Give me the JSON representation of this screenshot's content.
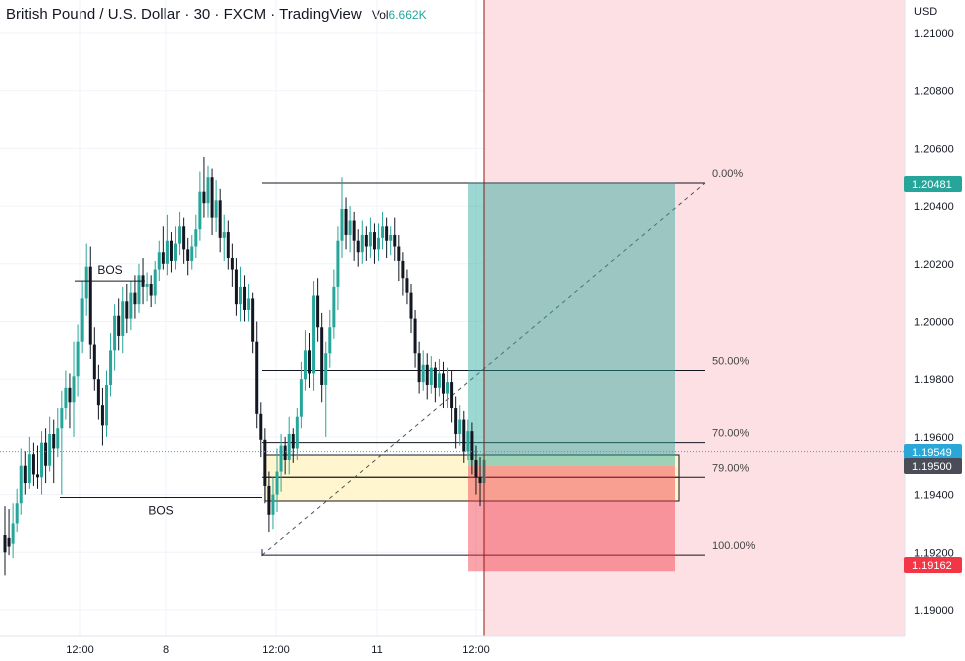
{
  "header": {
    "title": "British Pound / U.S. Dollar · 30 · FXCM · TradingView",
    "vol_label": "Vol",
    "vol_value": "6.662K"
  },
  "colors": {
    "up": "#26a69a",
    "down": "#131722",
    "target_zone": "#26a69a",
    "stop_zone": "#f23645",
    "zone_bg": "#fde0e3",
    "fvg": "#fff6cf",
    "grid": "#f0f3fa"
  },
  "chart_data": {
    "type": "candlestick",
    "title": "British Pound / U.S. Dollar · 30 · FXCM · TradingView",
    "currency": "USD",
    "yticks": [
      "1.21000",
      "1.20800",
      "1.20600",
      "1.20400",
      "1.20200",
      "1.20000",
      "1.19800",
      "1.19600",
      "1.19400",
      "1.19200",
      "1.19000"
    ],
    "xticks": [
      "12:00",
      "8",
      "12:00",
      "11",
      "12:00"
    ],
    "ylim": [
      1.1887,
      1.2117
    ],
    "price_labels": [
      {
        "value": "1.20481",
        "color": "#26a69a"
      },
      {
        "value": "1.19549",
        "color": "#2aa7d6"
      },
      {
        "value": "1.19500",
        "color": "#4a4d57"
      },
      {
        "value": "1.19162",
        "color": "#f23645"
      }
    ],
    "fib_levels": [
      {
        "label": "0.00%",
        "price": 1.2048
      },
      {
        "label": "50.00%",
        "price": 1.1983
      },
      {
        "label": "70.00%",
        "price": 1.1958
      },
      {
        "label": "79.00%",
        "price": 1.1946
      },
      {
        "label": "100.00%",
        "price": 1.1919
      }
    ],
    "annotations": [
      "BOS",
      "BOS"
    ],
    "position": {
      "entry": 1.195,
      "target": 1.20481,
      "stop": 1.19162
    },
    "candles": [
      [
        1.1926,
        1.192,
        1.1936,
        1.1912
      ],
      [
        1.1925,
        1.1922,
        1.1935,
        1.1919
      ],
      [
        1.1923,
        1.193,
        1.1937,
        1.1918
      ],
      [
        1.193,
        1.1937,
        1.1942,
        1.1927
      ],
      [
        1.1937,
        1.195,
        1.1956,
        1.1933
      ],
      [
        1.195,
        1.1944,
        1.1955,
        1.194
      ],
      [
        1.1944,
        1.1954,
        1.196,
        1.1942
      ],
      [
        1.1954,
        1.1947,
        1.1958,
        1.1943
      ],
      [
        1.1947,
        1.1946,
        1.1957,
        1.1942
      ],
      [
        1.1946,
        1.1958,
        1.1962,
        1.194
      ],
      [
        1.1958,
        1.195,
        1.1963,
        1.1944
      ],
      [
        1.195,
        1.1961,
        1.1967,
        1.1948
      ],
      [
        1.1961,
        1.1956,
        1.1966,
        1.1944
      ],
      [
        1.1956,
        1.1963,
        1.197,
        1.1953
      ],
      [
        1.1963,
        1.197,
        1.1976,
        1.194
      ],
      [
        1.197,
        1.1977,
        1.1983,
        1.1966
      ],
      [
        1.1977,
        1.1972,
        1.1982,
        1.1963
      ],
      [
        1.1972,
        1.1981,
        1.1993,
        1.196
      ],
      [
        1.1981,
        1.1993,
        1.1999,
        1.1974
      ],
      [
        1.1993,
        1.2008,
        1.2014,
        1.1989
      ],
      [
        1.2008,
        1.2019,
        1.2027,
        1.2002
      ],
      [
        1.2019,
        1.1992,
        1.2026,
        1.1987
      ],
      [
        1.1992,
        1.198,
        1.1998,
        1.1976
      ],
      [
        1.198,
        1.1971,
        1.1985,
        1.1966
      ],
      [
        1.1971,
        1.1964,
        1.1977,
        1.1957
      ],
      [
        1.1964,
        1.1978,
        1.1983,
        1.196
      ],
      [
        1.1978,
        1.199,
        1.1996,
        1.1974
      ],
      [
        1.199,
        1.2002,
        1.2006,
        1.1983
      ],
      [
        1.2002,
        1.1995,
        1.2008,
        1.199
      ],
      [
        1.1995,
        1.2007,
        1.2012,
        1.1989
      ],
      [
        1.2007,
        1.2001,
        1.2013,
        1.1996
      ],
      [
        1.2001,
        1.201,
        1.2014,
        1.1997
      ],
      [
        1.201,
        1.2006,
        1.2016,
        1.2001
      ],
      [
        1.2006,
        1.2016,
        1.202,
        1.2003
      ],
      [
        1.2016,
        1.2012,
        1.2022,
        1.2006
      ],
      [
        1.2012,
        1.2013,
        1.2017,
        1.2007
      ],
      [
        1.2013,
        1.2009,
        1.2016,
        1.2005
      ],
      [
        1.2009,
        1.2018,
        1.2021,
        1.2006
      ],
      [
        1.2018,
        1.2024,
        1.2028,
        1.2014
      ],
      [
        1.2024,
        1.202,
        1.2033,
        1.2018
      ],
      [
        1.202,
        1.2028,
        1.2037,
        1.2016
      ],
      [
        1.2028,
        1.2021,
        1.2031,
        1.2017
      ],
      [
        1.2021,
        1.2027,
        1.2033,
        1.2018
      ],
      [
        1.2027,
        1.2033,
        1.2038,
        1.2023
      ],
      [
        1.2033,
        1.2025,
        1.2036,
        1.202
      ],
      [
        1.2025,
        1.2021,
        1.2029,
        1.2016
      ],
      [
        1.2021,
        1.2026,
        1.203,
        1.2018
      ],
      [
        1.2026,
        1.2032,
        1.2037,
        1.2022
      ],
      [
        1.2032,
        1.2045,
        1.2052,
        1.2028
      ],
      [
        1.2045,
        1.2041,
        1.2057,
        1.2036
      ],
      [
        1.2041,
        1.205,
        1.2054,
        1.2036
      ],
      [
        1.205,
        1.2036,
        1.2053,
        1.203
      ],
      [
        1.2036,
        1.2042,
        1.2049,
        1.2031
      ],
      [
        1.2042,
        1.2029,
        1.2046,
        1.2024
      ],
      [
        1.2029,
        1.2031,
        1.2037,
        1.2021
      ],
      [
        1.2031,
        1.2022,
        1.2035,
        1.2018
      ],
      [
        1.2022,
        1.2018,
        1.2027,
        1.2012
      ],
      [
        1.2018,
        1.2006,
        1.2022,
        1.2002
      ],
      [
        1.2006,
        1.2012,
        1.2019,
        1.2
      ],
      [
        1.2012,
        1.2004,
        1.2016,
        1.2
      ],
      [
        1.2004,
        1.2008,
        1.2013,
        1.2
      ],
      [
        1.2008,
        1.1993,
        1.201,
        1.1989
      ],
      [
        1.1993,
        1.1968,
        1.2,
        1.1963
      ],
      [
        1.1968,
        1.1959,
        1.1972,
        1.1953
      ],
      [
        1.1959,
        1.1943,
        1.1963,
        1.1937
      ],
      [
        1.1943,
        1.1933,
        1.1948,
        1.1927
      ],
      [
        1.1933,
        1.194,
        1.1946,
        1.1928
      ],
      [
        1.194,
        1.1948,
        1.1956,
        1.1934
      ],
      [
        1.1948,
        1.1957,
        1.1961,
        1.1941
      ],
      [
        1.1957,
        1.1952,
        1.196,
        1.1947
      ],
      [
        1.1952,
        1.1961,
        1.1967,
        1.1947
      ],
      [
        1.1961,
        1.1956,
        1.1963,
        1.1951
      ],
      [
        1.1956,
        1.1967,
        1.197,
        1.1952
      ],
      [
        1.1967,
        1.198,
        1.1986,
        1.1963
      ],
      [
        1.198,
        1.199,
        1.1997,
        1.1976
      ],
      [
        1.199,
        1.1982,
        1.1996,
        1.1977
      ],
      [
        1.1982,
        1.2009,
        1.2014,
        1.1976
      ],
      [
        1.2009,
        1.1998,
        1.2015,
        1.1993
      ],
      [
        1.1998,
        1.1978,
        1.2003,
        1.1972
      ],
      [
        1.1978,
        1.1989,
        1.1993,
        1.196
      ],
      [
        1.1989,
        1.1998,
        1.2004,
        1.1984
      ],
      [
        1.1998,
        1.2012,
        1.2018,
        1.1994
      ],
      [
        1.2012,
        1.2028,
        1.2033,
        1.2004
      ],
      [
        1.2028,
        1.2039,
        1.205,
        1.2022
      ],
      [
        1.2039,
        1.203,
        1.2043,
        1.2025
      ],
      [
        1.203,
        1.2035,
        1.204,
        1.2024
      ],
      [
        1.2035,
        1.2028,
        1.2038,
        1.2021
      ],
      [
        1.2028,
        1.2024,
        1.2032,
        1.2019
      ],
      [
        1.2024,
        1.203,
        1.2035,
        1.202
      ],
      [
        1.203,
        1.2026,
        1.2033,
        1.2021
      ],
      [
        1.2026,
        1.2031,
        1.2036,
        1.2022
      ],
      [
        1.2031,
        1.2025,
        1.2034,
        1.202
      ],
      [
        1.2025,
        1.2029,
        1.2034,
        1.2021
      ],
      [
        1.2029,
        1.2033,
        1.2038,
        1.2025
      ],
      [
        1.2033,
        1.2028,
        1.2036,
        1.2022
      ],
      [
        1.2028,
        1.203,
        1.2033,
        1.2023
      ],
      [
        1.203,
        1.2026,
        1.2036,
        1.2021
      ],
      [
        1.2026,
        1.2021,
        1.203,
        1.2014
      ],
      [
        1.2021,
        1.2015,
        1.2024,
        1.2009
      ],
      [
        1.2015,
        1.201,
        1.2018,
        1.2006
      ],
      [
        1.201,
        1.2001,
        1.2013,
        1.1996
      ],
      [
        1.2001,
        1.1989,
        1.2004,
        1.1984
      ],
      [
        1.1989,
        1.1979,
        1.1993,
        1.1975
      ],
      [
        1.1979,
        1.1985,
        1.199,
        1.1976
      ],
      [
        1.1985,
        1.1978,
        1.1989,
        1.1973
      ],
      [
        1.1978,
        1.1984,
        1.1988,
        1.1975
      ],
      [
        1.1984,
        1.1977,
        1.1986,
        1.1972
      ],
      [
        1.1977,
        1.1982,
        1.1987,
        1.1974
      ],
      [
        1.1982,
        1.1975,
        1.1986,
        1.197
      ],
      [
        1.1975,
        1.1979,
        1.1984,
        1.197
      ],
      [
        1.1979,
        1.197,
        1.1983,
        1.1965
      ],
      [
        1.197,
        1.1961,
        1.1974,
        1.1956
      ],
      [
        1.1961,
        1.1966,
        1.1971,
        1.1957
      ],
      [
        1.1966,
        1.1955,
        1.1969,
        1.1951
      ],
      [
        1.1955,
        1.1962,
        1.1966,
        1.1952
      ],
      [
        1.1962,
        1.1952,
        1.1965,
        1.1947
      ],
      [
        1.1952,
        1.1946,
        1.1957,
        1.194
      ],
      [
        1.1946,
        1.1944,
        1.1953,
        1.1936
      ],
      [
        1.1944,
        1.1952,
        1.1957,
        1.1935
      ]
    ]
  }
}
